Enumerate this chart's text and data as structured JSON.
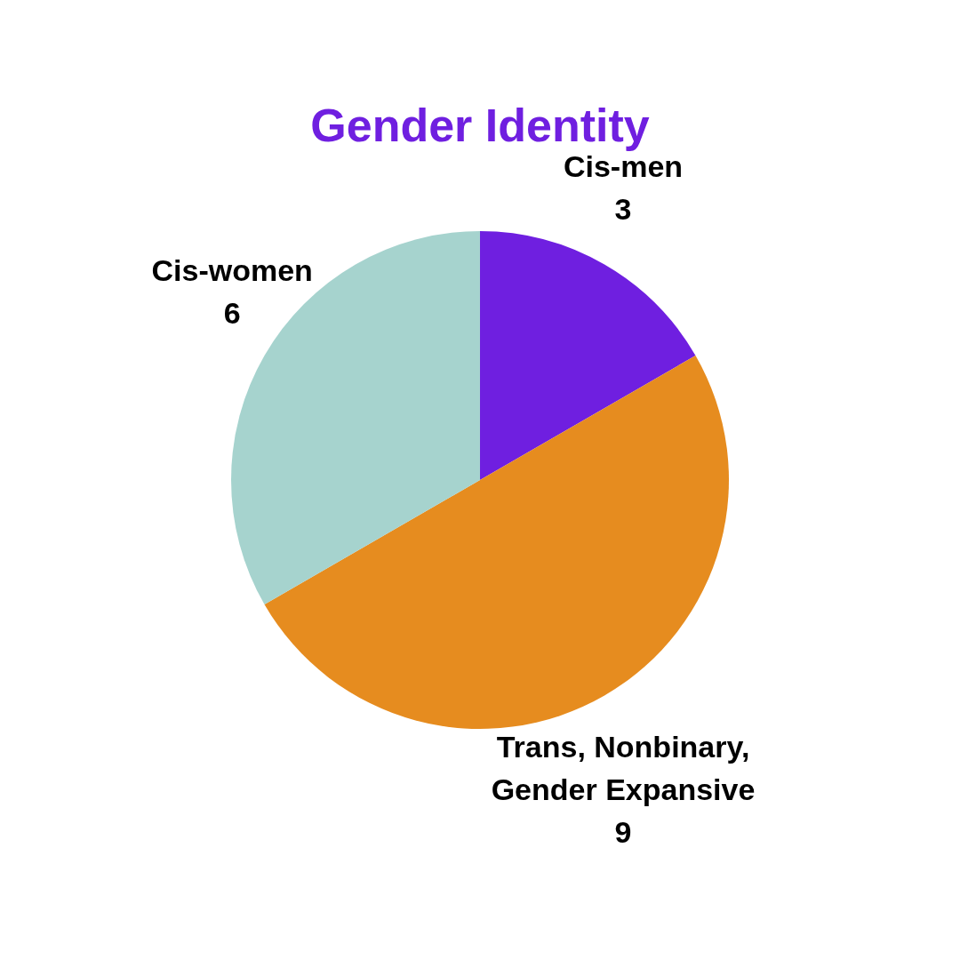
{
  "chart_data": {
    "type": "pie",
    "title": "Gender Identity",
    "categories": [
      "Cis-men",
      "Trans, Nonbinary, Gender Expansive",
      "Cis-women"
    ],
    "values": [
      3,
      9,
      6
    ],
    "colors": [
      "#6f1fe0",
      "#e68c1f",
      "#a6d3ce"
    ],
    "data_labels": true,
    "legend": false
  }
}
